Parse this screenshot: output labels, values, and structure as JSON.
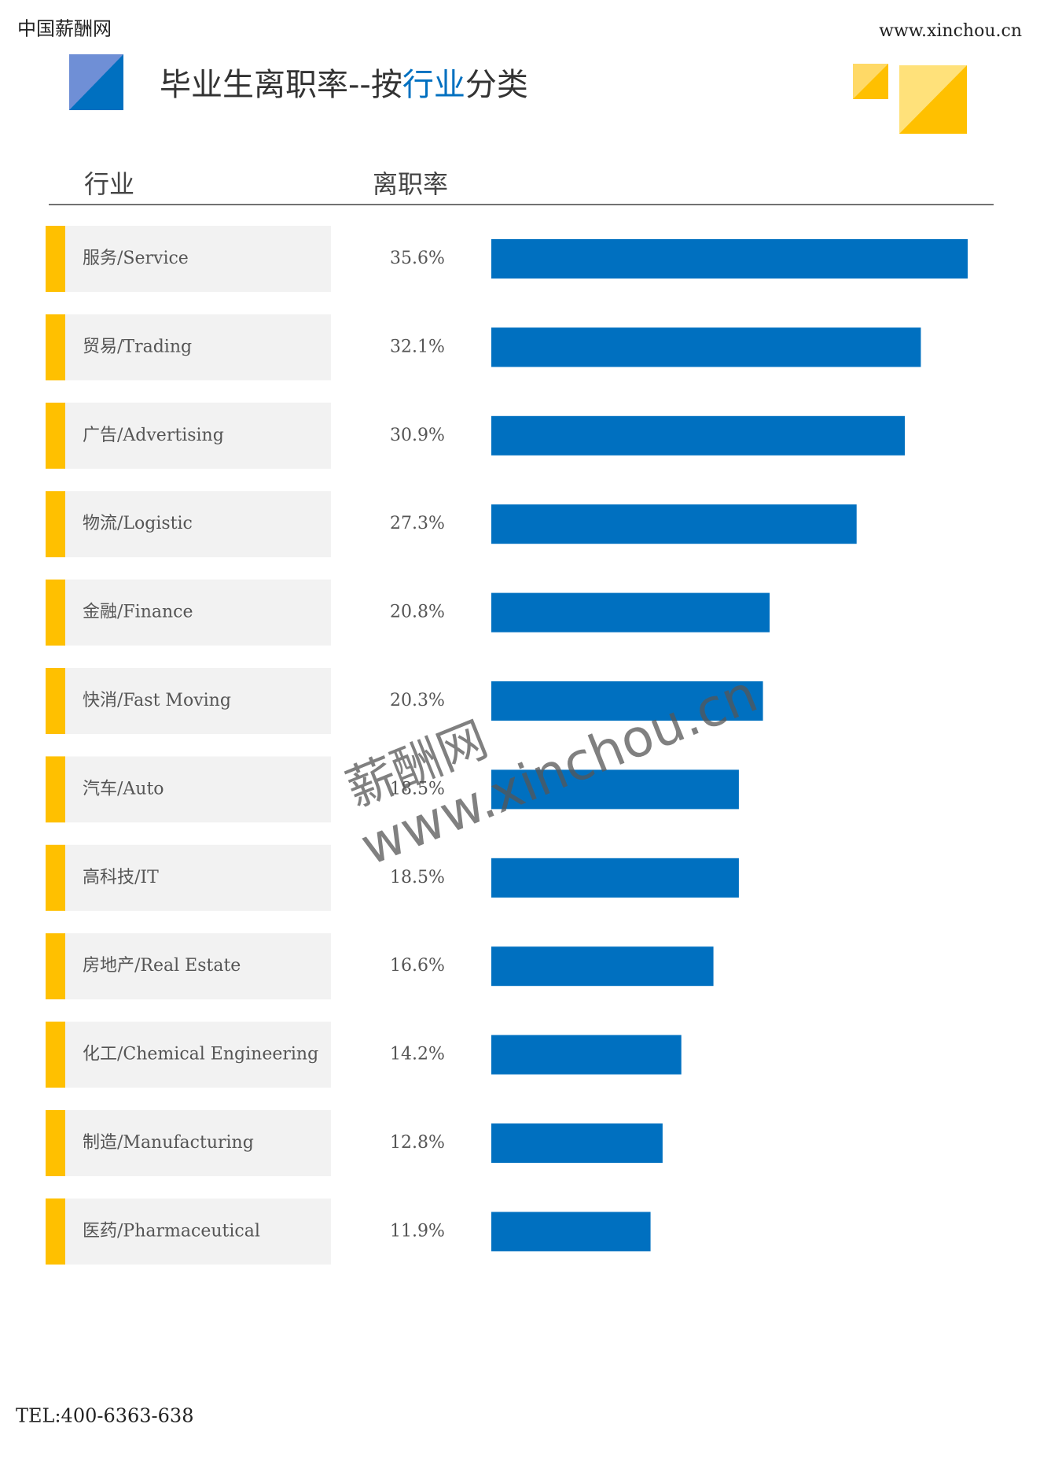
{
  "header": {
    "site_name": "中国薪酬网",
    "url": "www.xinchou.cn"
  },
  "chart_data": {
    "type": "bar",
    "title_parts": [
      "毕业生离职率--按",
      "行业",
      "分类"
    ],
    "column_headers": [
      "行业",
      "离职率"
    ],
    "categories": [
      "服务/Service",
      "贸易/Trading",
      "广告/Advertising",
      "物流/Logistic",
      "金融/Finance",
      "快消/Fast Moving",
      "汽车/Auto",
      "高科技/IT",
      "房地产/Real Estate",
      "化工/Chemical Engineering",
      "制造/Manufacturing",
      "医药/Pharmaceutical"
    ],
    "values": [
      35.6,
      32.1,
      30.9,
      27.3,
      20.8,
      20.3,
      18.5,
      18.5,
      16.6,
      14.2,
      12.8,
      11.9
    ],
    "value_labels": [
      "35.6%",
      "32.1%",
      "30.9%",
      "27.3%",
      "20.8%",
      "20.3%",
      "18.5%",
      "18.5%",
      "16.6%",
      "14.2%",
      "12.8%",
      "11.9%"
    ],
    "color": "#0070c0"
  },
  "watermark": [
    "薪酬网",
    "www.xinchou.cn"
  ],
  "footer": {
    "tel": "TEL:400-6363-638"
  }
}
